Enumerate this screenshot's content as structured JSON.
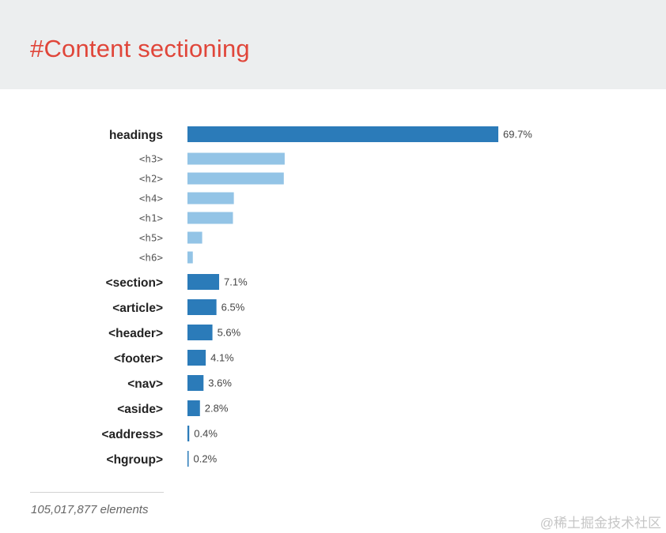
{
  "header": {
    "title": "#Content sectioning"
  },
  "colors": {
    "header_bg": "#eceeef",
    "title": "#e0463a",
    "bar_primary": "#2b7bb9",
    "bar_secondary": "#93c4e6",
    "label_text": "#222222",
    "value_text": "#444444"
  },
  "chart_data": {
    "type": "bar",
    "orientation": "horizontal",
    "title": "",
    "xlabel": "",
    "ylabel": "",
    "xlim": [
      0,
      69.7
    ],
    "grid": false,
    "legend": "none",
    "value_unit": "%",
    "bars": [
      {
        "label": "headings",
        "value": 69.7,
        "value_label": "69.7%",
        "group": "primary"
      },
      {
        "label": "<h3>",
        "value": 21.8,
        "value_label": "",
        "group": "sub"
      },
      {
        "label": "<h2>",
        "value": 21.6,
        "value_label": "",
        "group": "sub"
      },
      {
        "label": "<h4>",
        "value": 10.4,
        "value_label": "",
        "group": "sub"
      },
      {
        "label": "<h1>",
        "value": 10.2,
        "value_label": "",
        "group": "sub"
      },
      {
        "label": "<h5>",
        "value": 3.3,
        "value_label": "",
        "group": "sub"
      },
      {
        "label": "<h6>",
        "value": 1.2,
        "value_label": "",
        "group": "sub"
      },
      {
        "label": "<section>",
        "value": 7.1,
        "value_label": "7.1%",
        "group": "primary"
      },
      {
        "label": "<article>",
        "value": 6.5,
        "value_label": "6.5%",
        "group": "primary"
      },
      {
        "label": "<header>",
        "value": 5.6,
        "value_label": "5.6%",
        "group": "primary"
      },
      {
        "label": "<footer>",
        "value": 4.1,
        "value_label": "4.1%",
        "group": "primary"
      },
      {
        "label": "<nav>",
        "value": 3.6,
        "value_label": "3.6%",
        "group": "primary"
      },
      {
        "label": "<aside>",
        "value": 2.8,
        "value_label": "2.8%",
        "group": "primary"
      },
      {
        "label": "<address>",
        "value": 0.4,
        "value_label": "0.4%",
        "group": "primary"
      },
      {
        "label": "<hgroup>",
        "value": 0.2,
        "value_label": "0.2%",
        "group": "primary"
      }
    ]
  },
  "footer": {
    "note": "105,017,877 elements"
  },
  "watermark": {
    "text": "@稀土掘金技术社区"
  }
}
